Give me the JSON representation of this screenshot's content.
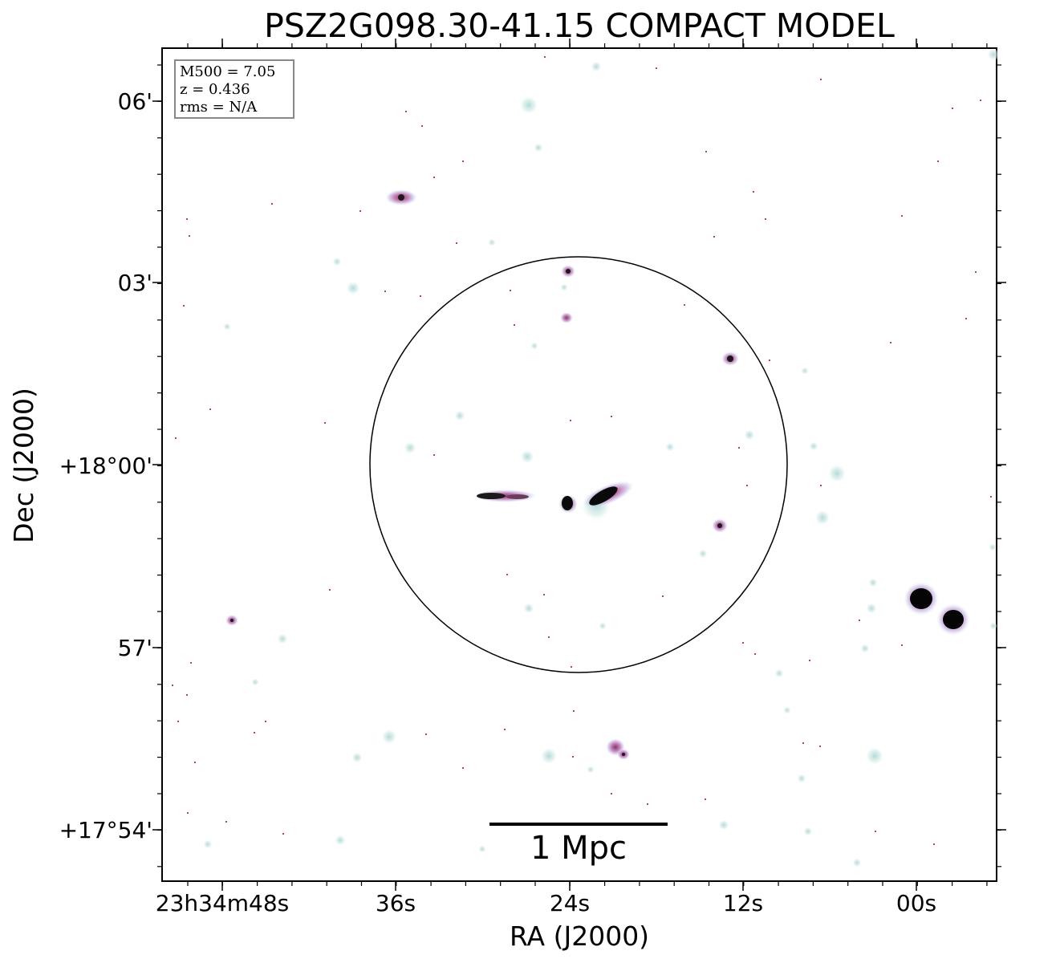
{
  "title": "PSZ2G098.30-41.15 COMPACT MODEL",
  "axes": {
    "xlabel": "RA (J2000)",
    "ylabel": "Dec (J2000)",
    "xticks": [
      "23h34m48s",
      "36s",
      "24s",
      "12s",
      "00s"
    ],
    "yticks": [
      "06'",
      "03'",
      "+18°00'",
      "57'",
      "+17°54'"
    ]
  },
  "info_box": {
    "mass": "M500 = 7.05",
    "redshift": "z = 0.436",
    "rms": "rms = N/A"
  },
  "scale_bar": {
    "label": "1 Mpc"
  },
  "colors": {
    "halo": "#cfe8e6",
    "magenta": "#c0609e",
    "core": "#000000",
    "frame": "#000000"
  }
}
